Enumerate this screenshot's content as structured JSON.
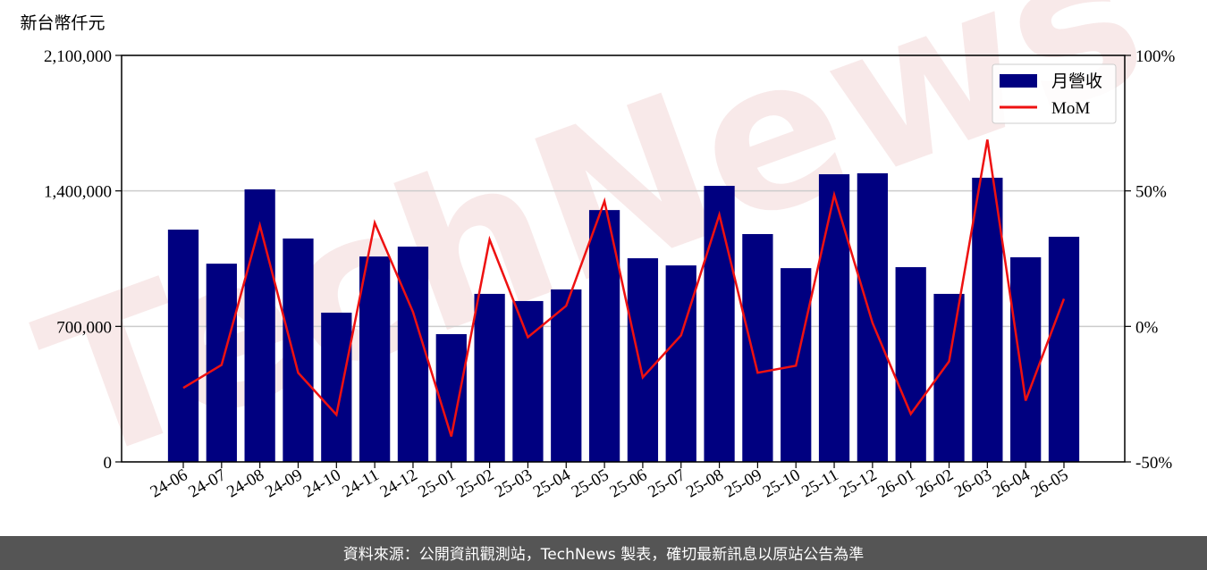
{
  "chart_data": {
    "type": "bar_line",
    "y_label": "新台幣仟元",
    "watermark": "TechNews",
    "footer": "資料來源：公開資訊觀測站，TechNews 製表，確切最新訊息以原站公告為準",
    "categories": [
      "24-06",
      "24-07",
      "24-08",
      "24-09",
      "24-10",
      "24-11",
      "24-12",
      "25-01",
      "25-02",
      "25-03",
      "25-04",
      "25-05",
      "25-06",
      "25-07",
      "25-08",
      "25-09",
      "25-10",
      "25-11",
      "25-12",
      "26-01",
      "26-02",
      "26-03",
      "26-04",
      "26-05"
    ],
    "series": [
      {
        "name": "月營收",
        "type": "bar",
        "color": "#000080",
        "values": [
          1200000,
          1024000,
          1408000,
          1154000,
          771000,
          1061000,
          1112000,
          660000,
          868000,
          831000,
          891000,
          1301000,
          1052000,
          1015000,
          1426000,
          1177000,
          1001000,
          1486000,
          1491000,
          1006000,
          868000,
          1468000,
          1057000,
          1163000
        ]
      },
      {
        "name": "MoM",
        "type": "line",
        "axis": "y2",
        "color": "#ee1111",
        "values": [
          -22.7,
          -14.2,
          37.3,
          -17.1,
          -32.6,
          38.2,
          5.3,
          -40.6,
          32.0,
          -4.0,
          7.6,
          46.2,
          -18.8,
          -3.3,
          41.2,
          -17.1,
          -14.5,
          48.5,
          1.3,
          -32.3,
          -12.9,
          68.9,
          -27.4,
          10.2
        ]
      }
    ],
    "ylim": [
      0,
      2100000
    ],
    "yticks": [
      0,
      {
        "value": 700000,
        "label": "700,000"
      },
      {
        "value": 1400000,
        "label": "1,400,000"
      },
      {
        "value": 2100000,
        "label": "2,100,000"
      }
    ],
    "y2lim": [
      -50,
      100
    ],
    "y2ticks": [
      {
        "value": -50,
        "label": "-50%"
      },
      {
        "value": 0,
        "label": "0%"
      },
      {
        "value": 50,
        "label": "50%"
      },
      {
        "value": 100,
        "label": "100%"
      }
    ],
    "grid": true,
    "legend": "upper right"
  }
}
